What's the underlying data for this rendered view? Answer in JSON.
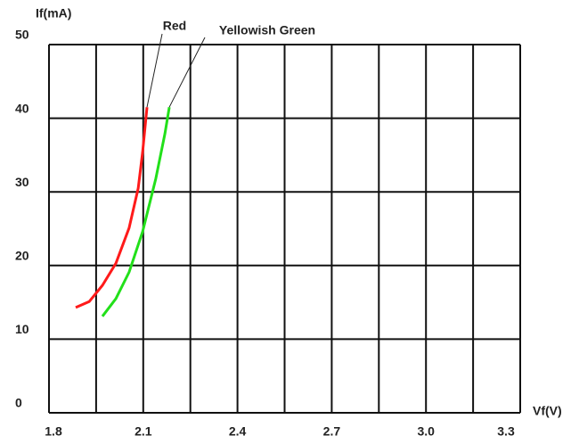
{
  "chart_data": {
    "type": "line",
    "x_label": "Vf(V)",
    "y_label": "If(mA)",
    "xlim": [
      1.8,
      3.3
    ],
    "xticks": [
      1.8,
      2.1,
      2.4,
      2.7,
      {
        "value": 3,
        "label": "3.0"
      },
      3.3
    ],
    "ylim": [
      0,
      50
    ],
    "yticks": [
      0,
      10,
      20,
      30,
      40,
      50
    ],
    "grid": true,
    "series": [
      {
        "name": "Red",
        "color": "#ff1a1a",
        "x": [
          1.885,
          1.928,
          1.97,
          2.013,
          2.055,
          2.084,
          2.098,
          2.112
        ],
        "values": [
          14.3,
          15.1,
          17.3,
          20.3,
          25.1,
          30.5,
          35.4,
          41.5
        ]
      },
      {
        "name": "Yellowish Green",
        "color": "#22e01a",
        "x": [
          1.97,
          2.013,
          2.055,
          2.098,
          2.14,
          2.169,
          2.183
        ],
        "values": [
          13.1,
          15.5,
          19.1,
          24.6,
          31.8,
          37.9,
          41.5
        ]
      }
    ]
  }
}
